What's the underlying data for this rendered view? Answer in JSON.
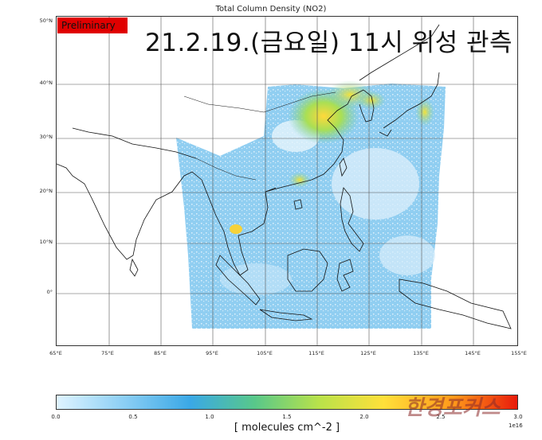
{
  "title": "Total Column Density (NO2)",
  "stamp": "Preliminary",
  "headline": "21.2.19.(금요일) 11시 위성 관측",
  "latitude_labels": [
    "50°N",
    "40°N",
    "30°N",
    "20°N",
    "10°N",
    "0°"
  ],
  "longitude_labels": [
    "65°E",
    "75°E",
    "85°E",
    "95°E",
    "105°E",
    "115°E",
    "125°E",
    "135°E",
    "145°E",
    "155°E"
  ],
  "colorbar": {
    "ticks": [
      "0.0",
      "0.5",
      "1.0",
      "1.5",
      "2.0",
      "2.5",
      "3.0"
    ],
    "exponent": "1e16",
    "unit_label": "[ molecules cm^-2 ]",
    "colors": [
      "#dff4ff",
      "#8fd0f5",
      "#3aa8e6",
      "#58c88a",
      "#b9e24a",
      "#ffe03a",
      "#ff9a1a",
      "#e81b0b"
    ]
  },
  "watermark": "한경포커스"
}
